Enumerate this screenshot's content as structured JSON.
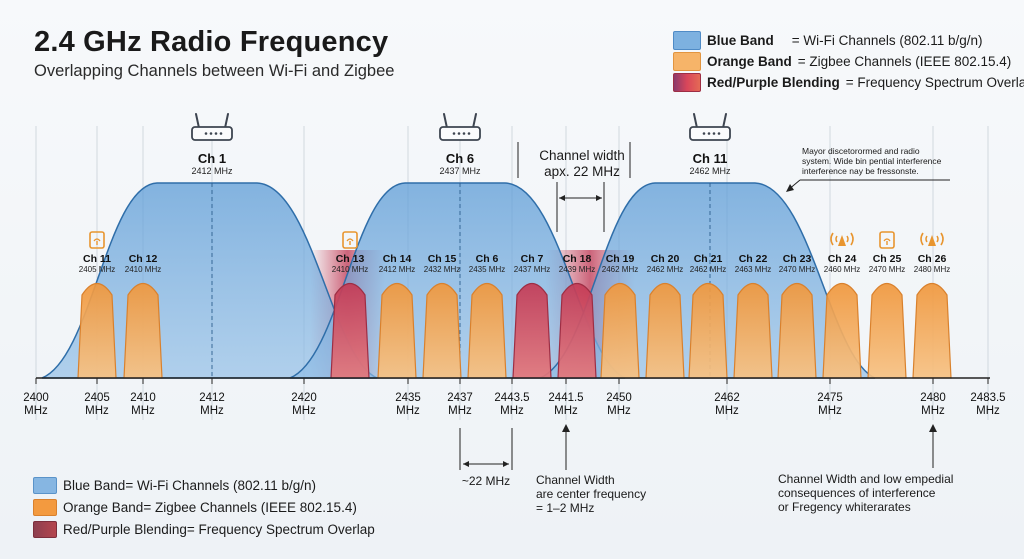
{
  "header": {
    "title": "2.4 GHz Radio Frequency",
    "subtitle": "Overlapping Channels between Wi-Fi and Zigbee"
  },
  "legend_top": [
    {
      "key": "Blue Band",
      "text": "= Wi-Fi Channels (802.11 b/g/n)",
      "color": "#78aede"
    },
    {
      "key": "Orange Band",
      "text": "= Zigbee Channels (IEEE 802.15.4)",
      "color": "#f5b063"
    },
    {
      "key": "Red/Purple Blending",
      "text": "= Frequency Spectrum Overlap",
      "color": "#c9475a"
    }
  ],
  "legend_bottom": [
    {
      "key": "Blue Band",
      "text": " = Wi-Fi Channels (802.11 b/g/n)",
      "color": "#78aede"
    },
    {
      "key": "Orange Band",
      "text": " = Zigbee Channels (IEEE 802.15.4)",
      "color": "#f5a04a"
    },
    {
      "key": "Red/Purple Blending",
      "text": " = Frequency Spectrum Overlap",
      "color": "#a7424f"
    }
  ],
  "colors": {
    "wifi_fill": "#4d8fce",
    "wifi_stroke": "#2f6ea9",
    "zigbee_fill": "#f5a04a",
    "zigbee_stroke": "#d9812d",
    "overlap_fill": "#c9475a",
    "overlap_stroke": "#9e2e44",
    "icon_orange": "#e8952f",
    "router_stroke": "#3d4550"
  },
  "axis": {
    "ticks": [
      {
        "value": "2400",
        "unit": "MHz"
      },
      {
        "value": "2405",
        "unit": "MHz"
      },
      {
        "value": "2410",
        "unit": "MHz"
      },
      {
        "value": "2412",
        "unit": "MHz"
      },
      {
        "value": "2420",
        "unit": "MHz"
      },
      {
        "value": "2435",
        "unit": "MHz"
      },
      {
        "value": "2437",
        "unit": "MHz"
      },
      {
        "value": "2443.5",
        "unit": "MHz"
      },
      {
        "value": "2441.5",
        "unit": "MHz"
      },
      {
        "value": "2450",
        "unit": "MHz"
      },
      {
        "value": "2462",
        "unit": "MHz"
      },
      {
        "value": "2475",
        "unit": "MHz"
      },
      {
        "value": "2480",
        "unit": "MHz"
      },
      {
        "value": "2483.5",
        "unit": "MHz"
      }
    ]
  },
  "wifi_channels": [
    {
      "name": "Ch 1",
      "freq": "2412 MHz"
    },
    {
      "name": "Ch 6",
      "freq": "2437 MHz"
    },
    {
      "name": "Ch 11",
      "freq": "2462 MHz"
    }
  ],
  "zigbee_channels": [
    {
      "name": "Ch 11",
      "freq": "2405 MHz",
      "overlap": false,
      "icon": "signal-box-icon"
    },
    {
      "name": "Ch 12",
      "freq": "2410 MHz",
      "overlap": false,
      "icon": ""
    },
    {
      "name": "Ch 13",
      "freq": "2410 MHz",
      "overlap": true,
      "icon": "signal-box-icon"
    },
    {
      "name": "Ch 14",
      "freq": "2412 MHz",
      "overlap": false,
      "icon": ""
    },
    {
      "name": "Ch 15",
      "freq": "2432 MHz",
      "overlap": false,
      "icon": ""
    },
    {
      "name": "Ch 6",
      "freq": "2435 MHz",
      "overlap": false,
      "icon": ""
    },
    {
      "name": "Ch 7",
      "freq": "2437 MHz",
      "overlap": true,
      "icon": ""
    },
    {
      "name": "Ch 18",
      "freq": "2439 MHz",
      "overlap": true,
      "icon": ""
    },
    {
      "name": "Ch 19",
      "freq": "2462 MHz",
      "overlap": false,
      "icon": ""
    },
    {
      "name": "Ch 20",
      "freq": "2462 MHz",
      "overlap": false,
      "icon": ""
    },
    {
      "name": "Ch 21",
      "freq": "2462 MHz",
      "overlap": false,
      "icon": ""
    },
    {
      "name": "Ch 22",
      "freq": "2463 MHz",
      "overlap": false,
      "icon": ""
    },
    {
      "name": "Ch 23",
      "freq": "2470 MHz",
      "overlap": false,
      "icon": ""
    },
    {
      "name": "Ch 24",
      "freq": "2460 MHz",
      "overlap": false,
      "icon": "antenna-icon"
    },
    {
      "name": "Ch 25",
      "freq": "2470 MHz",
      "overlap": false,
      "icon": "signal-box-icon"
    },
    {
      "name": "Ch 26",
      "freq": "2480 MHz",
      "overlap": false,
      "icon": "antenna-icon"
    }
  ],
  "annotations": {
    "channel_width_line1": "Channel width",
    "channel_width_line2": "apx. 22 MHz",
    "top_note_line1": "Mayor discetorormed and radio",
    "top_note_line2": "system. Wide bin pential interference",
    "top_note_line3": "interference nay be fressonste.",
    "width_22": "~22 MHz",
    "bottom_center_line1": "Channel Width",
    "bottom_center_line2": "are center frequency",
    "bottom_center_line3": "= 1–2 MHz",
    "bottom_right_line1": "Channel Width and low empedial",
    "bottom_right_line2": "consequences of interference",
    "bottom_right_line3": "or Fregency whiterarates"
  }
}
